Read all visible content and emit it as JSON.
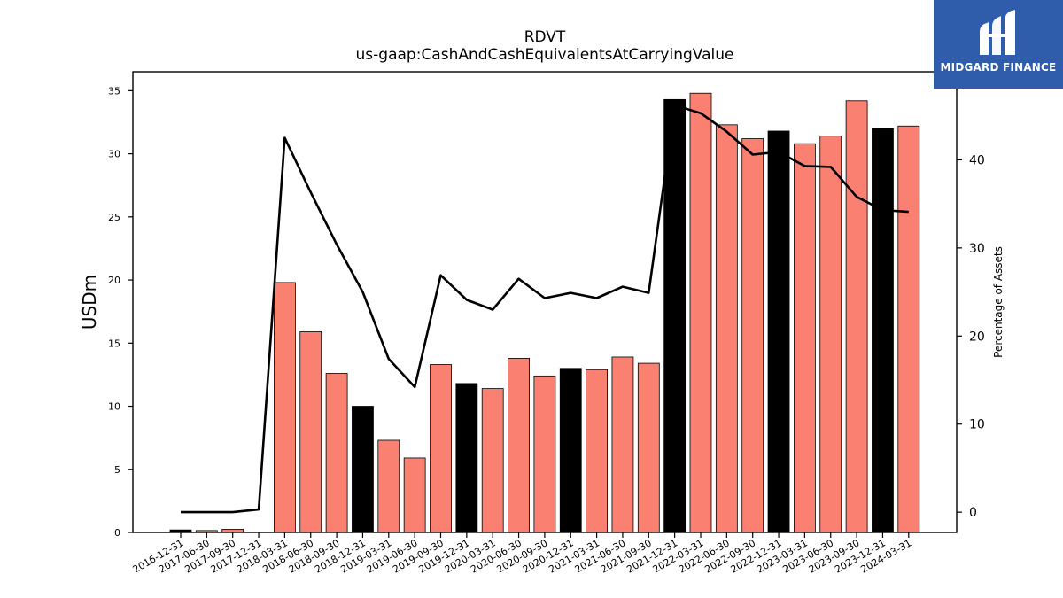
{
  "header": {
    "title": "RDVT",
    "subtitle": "us-gaap:CashAndCashEquivalentsAtCarryingValue"
  },
  "logo": {
    "text": "MIDGARD FINANCE",
    "background": "#2f5cab"
  },
  "colors": {
    "bar_default": "#fa8072",
    "bar_highlight": "#000000",
    "line": "#000000"
  },
  "chart_data": {
    "type": "bar",
    "title": "RDVT",
    "subtitle": "us-gaap:CashAndCashEquivalentsAtCarryingValue",
    "ylabel": "USDm",
    "y2label": "Percentage of Assets",
    "ylim": [
      0,
      36.5
    ],
    "y2lim": [
      -2.3,
      50
    ],
    "yticks": [
      0,
      5,
      10,
      15,
      20,
      25,
      30,
      35
    ],
    "y2ticks": [
      0,
      10,
      20,
      30,
      40
    ],
    "categories": [
      "2016-12-31",
      "2017-06-30",
      "2017-09-30",
      "2017-12-31",
      "2018-03-31",
      "2018-06-30",
      "2018-09-30",
      "2018-12-31",
      "2019-03-31",
      "2019-06-30",
      "2019-09-30",
      "2019-12-31",
      "2020-03-31",
      "2020-06-30",
      "2020-09-30",
      "2020-12-31",
      "2021-03-31",
      "2021-06-30",
      "2021-09-30",
      "2021-12-31",
      "2022-03-31",
      "2022-06-30",
      "2022-09-30",
      "2022-12-31",
      "2023-03-31",
      "2023-06-30",
      "2023-09-30",
      "2023-12-31",
      "2024-03-31"
    ],
    "series": [
      {
        "type": "bar",
        "values": [
          0.2,
          0.15,
          0.25,
          0.0,
          19.8,
          15.9,
          12.6,
          10.0,
          7.3,
          5.9,
          13.3,
          11.8,
          11.4,
          13.8,
          12.4,
          13.0,
          12.9,
          13.9,
          13.4,
          34.3,
          34.8,
          32.3,
          31.2,
          31.8,
          30.8,
          31.4,
          34.2,
          32.0,
          32.2
        ],
        "highlight": [
          true,
          false,
          false,
          false,
          false,
          false,
          false,
          true,
          false,
          false,
          false,
          true,
          false,
          false,
          false,
          true,
          false,
          false,
          false,
          true,
          false,
          false,
          false,
          true,
          false,
          false,
          false,
          true,
          false
        ]
      },
      {
        "type": "line",
        "axis": "right",
        "values": [
          0.0,
          0.0,
          0.0,
          0.3,
          42.5,
          36.3,
          30.4,
          25.0,
          17.4,
          14.2,
          26.9,
          24.1,
          23.0,
          26.5,
          24.3,
          24.9,
          24.3,
          25.6,
          24.9,
          46.2,
          45.3,
          43.2,
          40.6,
          40.9,
          39.3,
          39.2,
          35.8,
          34.3,
          34.1
        ]
      }
    ],
    "grid": false
  }
}
